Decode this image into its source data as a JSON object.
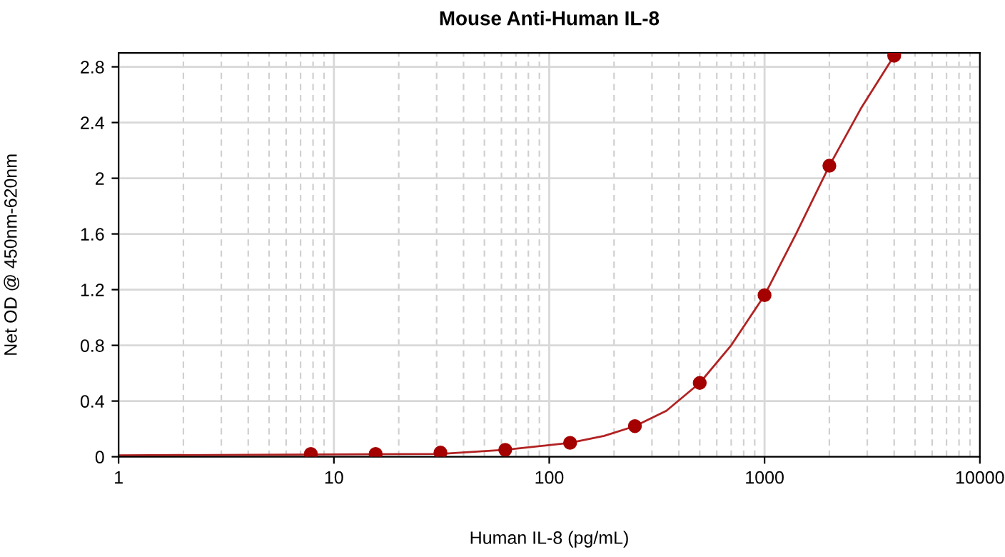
{
  "chart_data": {
    "type": "line",
    "title": "Mouse Anti-Human IL-8",
    "xlabel": "Human IL-8 (pg/mL)",
    "ylabel": "Net OD @ 450nm-620nm",
    "log": "x",
    "xlim": [
      1,
      10000
    ],
    "xticks": [
      1,
      10,
      100,
      1000,
      10000
    ],
    "ylim": [
      0,
      2.9
    ],
    "yticks": [
      0,
      0.4,
      0.8,
      1.2,
      1.6,
      2,
      2.4,
      2.8
    ],
    "grid": true,
    "series": [
      {
        "type": "scatter",
        "marker": "circle",
        "color": "#a50000",
        "x": [
          7.8125,
          15.625,
          31.25,
          62.5,
          125,
          250,
          500,
          1000,
          2000,
          4000
        ],
        "values": [
          0.02,
          0.02,
          0.03,
          0.05,
          0.1,
          0.22,
          0.53,
          1.16,
          2.09,
          2.88
        ]
      },
      {
        "color": "#b22222",
        "x": [
          1,
          31.25,
          62.5,
          125,
          180,
          250,
          350,
          500,
          700,
          1000,
          1400,
          2000,
          2800,
          4000
        ],
        "values": [
          0.01,
          0.02,
          0.05,
          0.1,
          0.15,
          0.22,
          0.33,
          0.53,
          0.8,
          1.16,
          1.6,
          2.09,
          2.5,
          2.88
        ]
      }
    ]
  }
}
